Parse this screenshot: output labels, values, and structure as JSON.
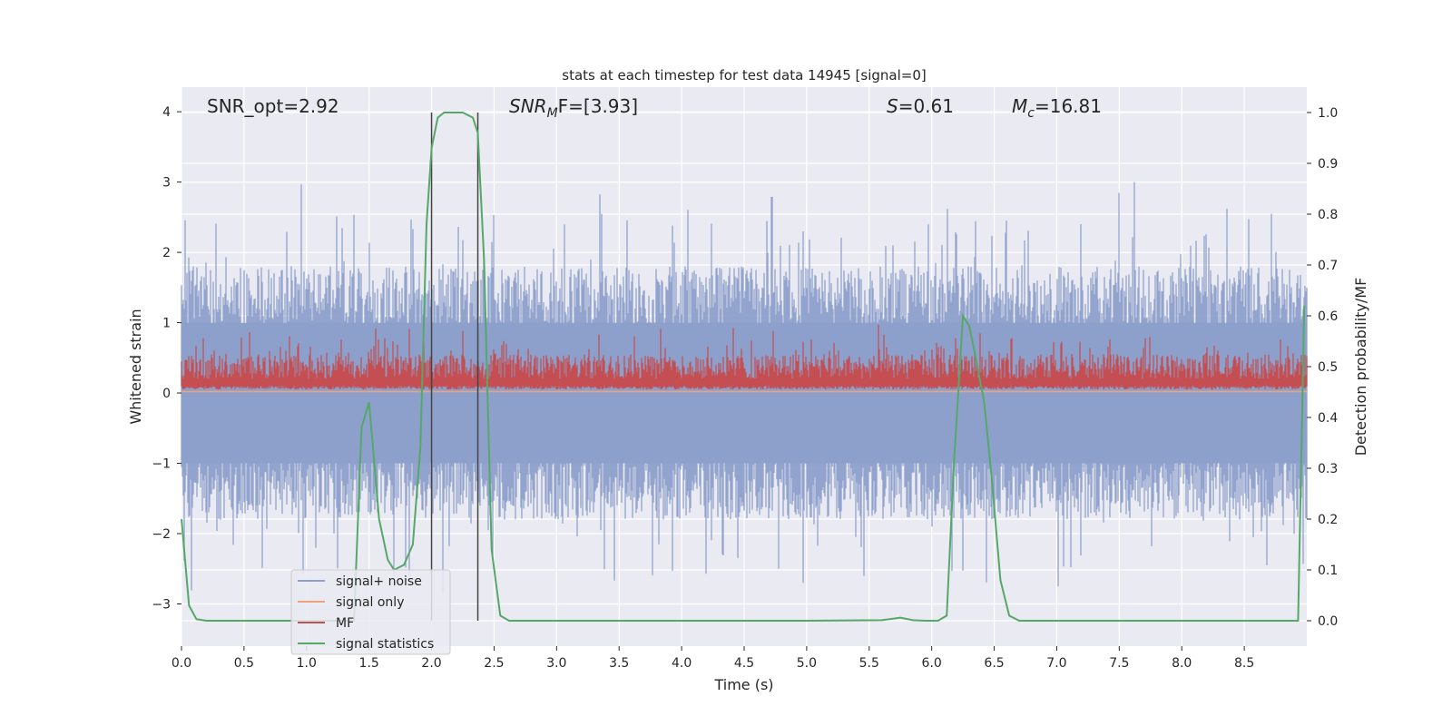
{
  "chart_data": {
    "type": "line",
    "title": "stats at each timestep for test data 14945 [signal=0]",
    "xlabel": "Time (s)",
    "ylabel_left": "Whitened strain",
    "ylabel_right": "Detection probability/MF",
    "xlim": [
      0.0,
      9.0
    ],
    "ylim_left": [
      -3.6,
      4.35
    ],
    "ylim_right": [
      -0.05,
      1.05
    ],
    "grid": true,
    "legend_position": "lower-left",
    "x_ticks": [
      "0.0",
      "0.5",
      "1.0",
      "1.5",
      "2.0",
      "2.5",
      "3.0",
      "3.5",
      "4.0",
      "4.5",
      "5.0",
      "5.5",
      "6.0",
      "6.5",
      "7.0",
      "7.5",
      "8.0",
      "8.5"
    ],
    "y_ticks_left": [
      "4",
      "3",
      "2",
      "1",
      "0",
      "−1",
      "−2",
      "−3"
    ],
    "y_ticks_right": [
      "1.0",
      "0.9",
      "0.8",
      "0.7",
      "0.6",
      "0.5",
      "0.4",
      "0.3",
      "0.2",
      "0.1",
      "0.0"
    ],
    "annotations": {
      "snr_opt": "SNR_opt=2.92",
      "snr_mf_main": "SNR",
      "snr_mf_sub": "M",
      "snr_mf_tail": "F=[3.93]",
      "s_main": "S",
      "s_tail": "=0.61",
      "mc_main": "M",
      "mc_sub": "c",
      "mc_tail": "=16.81"
    },
    "vertical_lines_s": [
      2.0,
      2.37
    ],
    "series": [
      {
        "name": "signal+ noise",
        "color": "#8da0cb",
        "style": "noise band",
        "spread_strain": [
          -2.9,
          3.3
        ]
      },
      {
        "name": "signal only",
        "color": "#e9a47f",
        "style": "flat near zero"
      },
      {
        "name": "MF",
        "color": "#c44e52",
        "style": "noise band",
        "spread_strain": [
          0.0,
          1.0
        ]
      },
      {
        "name": "signal statistics",
        "color": "#55a868",
        "x": [
          0.0,
          0.06,
          0.12,
          0.2,
          0.4,
          0.8,
          1.2,
          1.38,
          1.44,
          1.5,
          1.58,
          1.65,
          1.7,
          1.78,
          1.85,
          1.91,
          1.96,
          2.0,
          2.05,
          2.1,
          2.15,
          2.25,
          2.33,
          2.37,
          2.42,
          2.48,
          2.55,
          2.62,
          2.7,
          3.0,
          4.0,
          5.0,
          5.6,
          5.75,
          5.85,
          5.95,
          6.05,
          6.12,
          6.18,
          6.25,
          6.3,
          6.35,
          6.42,
          6.48,
          6.55,
          6.62,
          6.7,
          6.8,
          7.0,
          8.0,
          8.8,
          8.93,
          8.98
        ],
        "y": [
          0.2,
          0.03,
          0.003,
          0.0,
          0.0,
          0.0,
          0.0,
          0.0,
          0.38,
          0.43,
          0.2,
          0.12,
          0.1,
          0.11,
          0.15,
          0.34,
          0.78,
          0.93,
          0.99,
          1.0,
          1.0,
          1.0,
          0.99,
          0.96,
          0.71,
          0.14,
          0.01,
          0.0,
          0.0,
          0.0,
          0.0,
          0.0,
          0.001,
          0.006,
          0.001,
          0.0,
          0.0,
          0.01,
          0.32,
          0.6,
          0.58,
          0.52,
          0.43,
          0.28,
          0.08,
          0.01,
          0.0,
          0.0,
          0.0,
          0.0,
          0.0,
          0.0,
          0.62
        ]
      }
    ]
  }
}
